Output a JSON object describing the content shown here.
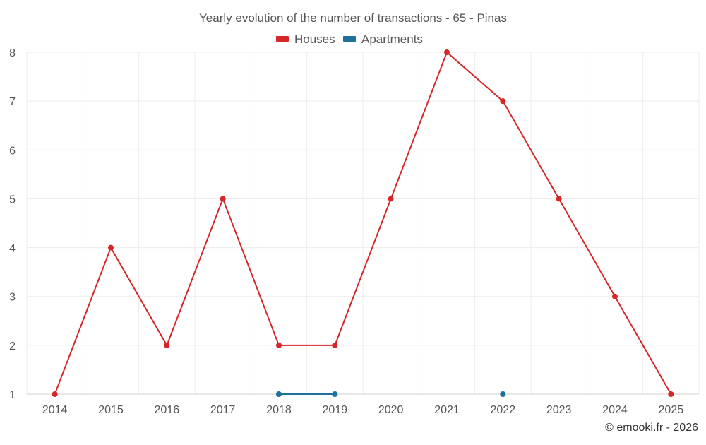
{
  "chart_data": {
    "type": "line",
    "title": "Yearly evolution of the number of transactions - 65 - Pinas",
    "x": [
      "2014",
      "2015",
      "2016",
      "2017",
      "2018",
      "2019",
      "2020",
      "2021",
      "2022",
      "2023",
      "2024",
      "2025"
    ],
    "yticks": [
      "1",
      "2",
      "3",
      "4",
      "5",
      "6",
      "7",
      "8"
    ],
    "ylim": [
      1,
      8
    ],
    "grid": true,
    "legend_position": "top-center",
    "series": [
      {
        "name": "Houses",
        "color": "#d62728",
        "values": [
          1,
          4,
          2,
          5,
          2,
          2,
          5,
          8,
          7,
          5,
          3,
          1
        ]
      },
      {
        "name": "Apartments",
        "color": "#1f6f9f",
        "values": [
          null,
          null,
          null,
          null,
          1,
          1,
          null,
          null,
          1,
          null,
          null,
          null
        ]
      }
    ]
  },
  "credit": "© emooki.fr - 2026"
}
